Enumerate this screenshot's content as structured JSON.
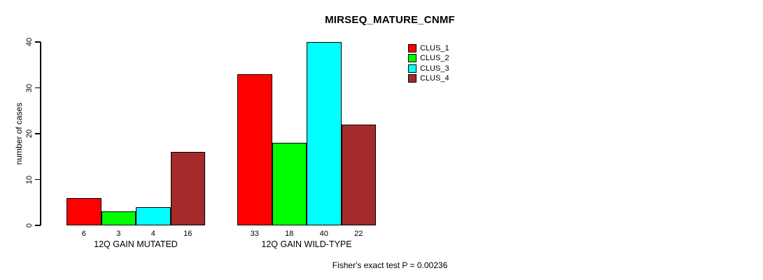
{
  "chart_data": {
    "type": "bar",
    "title": "MIRSEQ_MATURE_CNMF",
    "ylabel": "number of cases",
    "xlabel": "",
    "ylim": [
      0,
      40
    ],
    "yticks": [
      0,
      10,
      20,
      30,
      40
    ],
    "grid": false,
    "legend_position": "top-right",
    "categories": [
      "12Q GAIN MUTATED",
      "12Q GAIN WILD-TYPE"
    ],
    "series": [
      {
        "name": "CLUS_1",
        "color": "#ff0000",
        "values": [
          6,
          33
        ]
      },
      {
        "name": "CLUS_2",
        "color": "#00ff00",
        "values": [
          3,
          18
        ]
      },
      {
        "name": "CLUS_3",
        "color": "#00ffff",
        "values": [
          4,
          40
        ]
      },
      {
        "name": "CLUS_4",
        "color": "#a52a2a",
        "values": [
          16,
          22
        ]
      }
    ],
    "bar_value_labels_shown": true,
    "footer": "Fisher's exact test P = 0.00236"
  }
}
